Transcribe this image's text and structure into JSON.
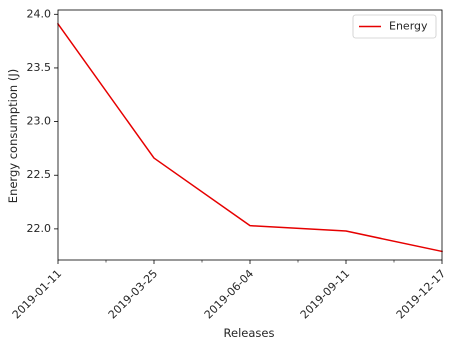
{
  "chart_data": {
    "type": "line",
    "xlabel": "Releases",
    "ylabel": "Energy consumption (J)",
    "categories": [
      "2019-01-11",
      "2019-03-25",
      "2019-06-04",
      "2019-09-11",
      "2019-12-17"
    ],
    "series": [
      {
        "name": "Energy",
        "color": "#e60000",
        "values": [
          23.91,
          22.66,
          22.03,
          21.98,
          21.79
        ]
      }
    ],
    "ylim": [
      21.71,
      24.04
    ],
    "yticks": [
      22.0,
      22.5,
      23.0,
      23.5,
      24.0
    ],
    "ytick_labels": [
      "22.0",
      "22.5",
      "23.0",
      "23.5",
      "24.0"
    ],
    "minor_x_ticks_between": 1,
    "grid": false,
    "legend": "top-right"
  }
}
